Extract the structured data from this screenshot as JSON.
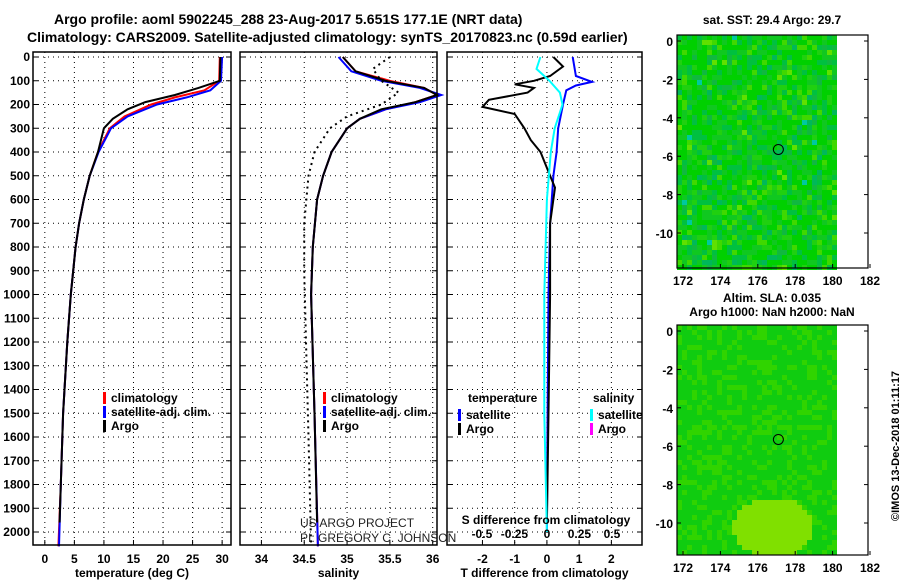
{
  "title_line1": "Argo profile: aoml 5902245_288 23-Aug-2017 5.651S 177.1E (NRT data)",
  "title_line2": "Climatology: CARS2009. Satellite-adjusted climatology: synTS_20170823.nc (0.59d earlier)",
  "credit_line1": "US ARGO PROJECT",
  "credit_line2": "PI: GREGORY C. JOHNSON",
  "side_stamp": "©IMOS 13-Dec-2018 01:11:17",
  "colors": {
    "climatology": "#ff0000",
    "satellite": "#0000ff",
    "argo": "#000000",
    "sal_satellite": "#00ffff",
    "sal_argo": "#ff00ff"
  },
  "chart_data": [
    {
      "type": "line",
      "xlabel": "temperature (deg C)",
      "ylabel": "",
      "xlim": [
        -2,
        31.5
      ],
      "ylim": [
        2060,
        0
      ],
      "xticks": [
        "0",
        "5",
        "10",
        "15",
        "20",
        "25",
        "30"
      ],
      "xtick_values": [
        0,
        5,
        10,
        15,
        20,
        25,
        30
      ],
      "yticks": [
        "0",
        "100",
        "200",
        "300",
        "400",
        "500",
        "600",
        "700",
        "800",
        "900",
        "1000",
        "1100",
        "1200",
        "1300",
        "1400",
        "1500",
        "1600",
        "1700",
        "1800",
        "1900",
        "2000"
      ],
      "legend": [
        "climatology",
        "satellite-adj. clim.",
        "Argo"
      ],
      "series": [
        {
          "name": "climatology",
          "color": "#ff0000",
          "depth": [
            0,
            100,
            140,
            170,
            200,
            250,
            300,
            400,
            500,
            600,
            700,
            800,
            1000,
            1200,
            1500,
            1800,
            2060
          ],
          "values": [
            29.6,
            29.5,
            27,
            22,
            18,
            13.5,
            11,
            9,
            7.6,
            6.6,
            5.8,
            5.2,
            4.4,
            3.8,
            3.1,
            2.7,
            2.3
          ]
        },
        {
          "name": "satellite-adj. clim.",
          "color": "#0000ff",
          "depth": [
            0,
            100,
            140,
            170,
            200,
            250,
            300,
            400,
            500,
            600,
            700,
            800,
            1000,
            1200,
            1500,
            1800,
            2060
          ],
          "values": [
            30,
            29.8,
            28,
            24,
            19,
            14,
            11.2,
            9.1,
            7.6,
            6.6,
            5.8,
            5.2,
            4.4,
            3.8,
            3.1,
            2.7,
            2.4
          ]
        },
        {
          "name": "Argo",
          "color": "#000000",
          "depth": [
            0,
            100,
            130,
            160,
            190,
            220,
            260,
            300,
            400,
            500,
            600,
            700,
            800,
            1000,
            1200,
            1500,
            1800,
            1960
          ],
          "values": [
            29.7,
            29.6,
            26,
            22,
            17,
            14,
            11.5,
            10,
            9,
            7.6,
            6.6,
            5.8,
            5.2,
            4.4,
            3.8,
            3.1,
            2.7,
            2.5
          ]
        }
      ]
    },
    {
      "type": "line",
      "xlabel": "salinity",
      "xlim": [
        33.75,
        36.05
      ],
      "ylim": [
        2060,
        0
      ],
      "xticks": [
        "34",
        "34.5",
        "35",
        "35.5",
        "36"
      ],
      "xtick_values": [
        34,
        34.5,
        35,
        35.5,
        36
      ],
      "legend": [
        "climatology",
        "satellite-adj. clim.",
        "Argo"
      ],
      "series": [
        {
          "name": "climatology",
          "color": "#ff0000",
          "depth": [
            0,
            60,
            100,
            130,
            160,
            190,
            220,
            260,
            300,
            400,
            500,
            600,
            800,
            1000,
            1500,
            2060
          ],
          "values": [
            34.95,
            35.1,
            35.5,
            35.9,
            36.05,
            35.8,
            35.45,
            35.15,
            35.0,
            34.82,
            34.72,
            34.65,
            34.6,
            34.58,
            34.62,
            34.66
          ]
        },
        {
          "name": "satellite-adj. clim.",
          "color": "#0000ff",
          "depth": [
            0,
            60,
            100,
            130,
            160,
            190,
            220,
            260,
            300,
            400,
            500,
            600,
            800,
            1000,
            1500,
            2060
          ],
          "values": [
            34.9,
            35.05,
            35.4,
            35.85,
            36.1,
            35.85,
            35.45,
            35.15,
            35.0,
            34.82,
            34.72,
            34.65,
            34.6,
            34.58,
            34.62,
            34.66
          ]
        },
        {
          "name": "Argo",
          "color": "#000000",
          "depth": [
            0,
            60,
            100,
            130,
            160,
            190,
            220,
            260,
            300,
            400,
            500,
            600,
            800,
            1000,
            1500,
            1960
          ],
          "values": [
            34.95,
            35.1,
            35.45,
            35.9,
            36.05,
            35.8,
            35.4,
            35.15,
            35.0,
            34.82,
            34.72,
            34.65,
            34.6,
            34.58,
            34.62,
            34.65
          ]
        },
        {
          "name": "dotted",
          "color": "#000000",
          "depth": [
            0,
            50,
            100,
            150,
            200,
            250,
            300,
            400,
            500,
            700,
            900,
            1200,
            1600,
            2060
          ],
          "values": [
            35.5,
            35.3,
            35.4,
            35.6,
            35.4,
            35.0,
            34.8,
            34.62,
            34.55,
            34.5,
            34.5,
            34.52,
            34.55,
            34.58
          ]
        }
      ]
    },
    {
      "type": "line",
      "xlabel": "T difference from climatology",
      "x2label": "S difference from climatology",
      "xlim": [
        -3.1,
        2.95
      ],
      "ylim": [
        2060,
        0
      ],
      "xticks": [
        "-2",
        "-1",
        "0",
        "1",
        "2"
      ],
      "xtick_values": [
        -2,
        -1,
        0,
        1,
        2
      ],
      "x2ticks": [
        "-0.5",
        "-0.25",
        "0",
        "0.25",
        "0.5"
      ],
      "x2tick_values": [
        -0.5,
        -0.25,
        0,
        0.25,
        0.5
      ],
      "legend_temperature": {
        "title": "temperature",
        "items": [
          "satellite",
          "Argo"
        ]
      },
      "legend_salinity": {
        "title": "salinity",
        "items": [
          "satellite",
          "Argo"
        ]
      },
      "series": [
        {
          "name": "T satellite",
          "color": "#0000ff",
          "depth": [
            0,
            80,
            105,
            120,
            140,
            200,
            300,
            400,
            500,
            700,
            1000,
            1500,
            2000
          ],
          "values": [
            0.8,
            0.9,
            1.4,
            0.9,
            0.6,
            0.5,
            0.35,
            0.3,
            0.2,
            0.1,
            0.05,
            0.02,
            0
          ]
        },
        {
          "name": "T Argo",
          "color": "#000000",
          "depth": [
            0,
            40,
            80,
            100,
            115,
            130,
            150,
            180,
            210,
            240,
            300,
            350,
            400,
            500,
            550,
            700,
            1000,
            1500,
            1960
          ],
          "values": [
            0.2,
            0.5,
            0.1,
            -0.4,
            -1.0,
            -0.4,
            -0.6,
            -1.8,
            -2.0,
            -1.0,
            -0.7,
            -0.5,
            -0.2,
            0.1,
            0.25,
            0.1,
            0.1,
            0.05,
            0
          ]
        },
        {
          "name": "S satellite",
          "color": "#00ffff",
          "depth": [
            0,
            50,
            100,
            150,
            200,
            300,
            400,
            600,
            1000,
            1500,
            2000
          ],
          "values": [
            -0.05,
            -0.08,
            0.02,
            0.1,
            0.12,
            0.06,
            0.03,
            0.0,
            -0.02,
            -0.02,
            0
          ]
        }
      ]
    }
  ],
  "maps": [
    {
      "title": "sat. SST: 29.4 Argo: 29.7",
      "xticks": [
        "172",
        "174",
        "176",
        "178",
        "180",
        "182"
      ],
      "yticks": [
        "0",
        "-2",
        "-4",
        "-6",
        "-8",
        "-10"
      ]
    },
    {
      "title_line1": "Altim. SLA: 0.035",
      "title_line2": "Argo h1000: NaN h2000: NaN",
      "xticks": [
        "172",
        "174",
        "176",
        "178",
        "180",
        "182"
      ],
      "yticks": [
        "0",
        "-2",
        "-4",
        "-6",
        "-8",
        "-10"
      ]
    }
  ]
}
